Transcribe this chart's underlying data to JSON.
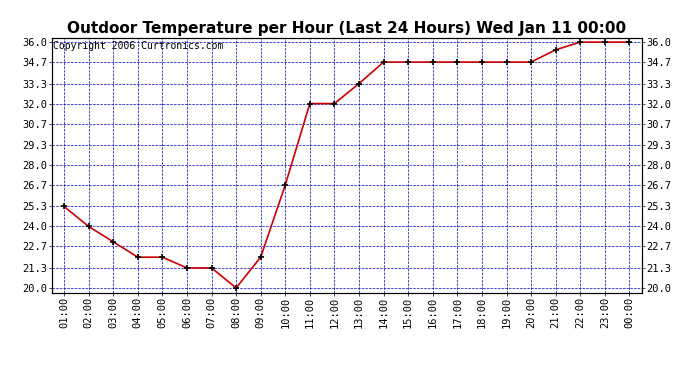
{
  "title": "Outdoor Temperature per Hour (Last 24 Hours) Wed Jan 11 00:00",
  "copyright": "Copyright 2006 Curtronics.com",
  "x_labels": [
    "01:00",
    "02:00",
    "03:00",
    "04:00",
    "05:00",
    "06:00",
    "07:00",
    "08:00",
    "09:00",
    "10:00",
    "11:00",
    "12:00",
    "13:00",
    "14:00",
    "15:00",
    "16:00",
    "17:00",
    "18:00",
    "19:00",
    "20:00",
    "21:00",
    "22:00",
    "23:00",
    "00:00"
  ],
  "y_values": [
    25.3,
    24.0,
    23.0,
    22.0,
    22.0,
    21.3,
    21.3,
    20.0,
    22.0,
    26.7,
    32.0,
    32.0,
    33.3,
    34.7,
    34.7,
    34.7,
    34.7,
    34.7,
    34.7,
    34.7,
    35.5,
    36.0,
    36.0,
    36.0
  ],
  "y_ticks": [
    20.0,
    21.3,
    22.7,
    24.0,
    25.3,
    26.7,
    28.0,
    29.3,
    30.7,
    32.0,
    33.3,
    34.7,
    36.0
  ],
  "y_tick_labels": [
    "20.0",
    "21.3",
    "22.7",
    "24.0",
    "25.3",
    "26.7",
    "28.0",
    "29.3",
    "30.7",
    "32.0",
    "33.3",
    "34.7",
    "36.0"
  ],
  "ylim": [
    19.7,
    36.3
  ],
  "line_color": "#cc0000",
  "marker": "+",
  "marker_color": "#000000",
  "grid_color": "#0000bb",
  "background_color": "#ffffff",
  "title_fontsize": 11,
  "axis_fontsize": 7.5,
  "copyright_fontsize": 7
}
